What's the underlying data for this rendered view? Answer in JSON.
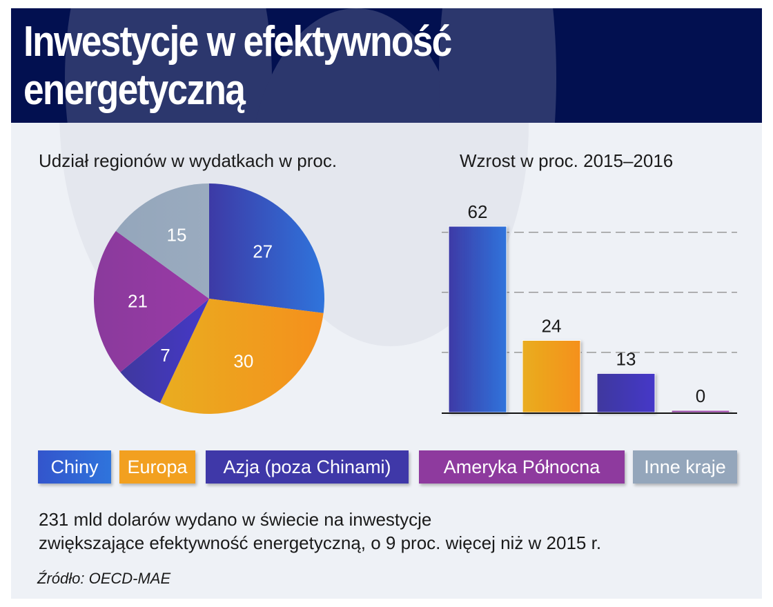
{
  "title": "Inwestycje w efektywność energetyczną",
  "colors": {
    "chiny": "#2f6fdc",
    "europa": "#f2a020",
    "azja": "#3f38a8",
    "ameryka": "#8e3a9e",
    "inne": "#94a6bb",
    "header": "#021050"
  },
  "legend": [
    {
      "label": "Chiny",
      "color": "#3355cc"
    },
    {
      "label": "Europa",
      "color": "#f2a020"
    },
    {
      "label": "Azja (poza Chinami)",
      "color": "#3f38a8"
    },
    {
      "label": "Ameryka Północna",
      "color": "#8e3a9e"
    },
    {
      "label": "Inne kraje",
      "color": "#94a6bb"
    }
  ],
  "chart_data": [
    {
      "type": "pie",
      "title": "Udział regionów w wydatkach w proc.",
      "categories": [
        "Chiny",
        "Europa",
        "Azja (poza Chinami)",
        "Ameryka Północna",
        "Inne kraje"
      ],
      "values": [
        27,
        30,
        7,
        21,
        15
      ],
      "labels": [
        "27",
        "30",
        "7",
        "21",
        "15"
      ]
    },
    {
      "type": "bar",
      "title": "Wzrost w proc. 2015–2016",
      "categories": [
        "Chiny",
        "Europa",
        "Azja (poza Chinami)",
        "Ameryka Północna"
      ],
      "values": [
        62,
        24,
        13,
        0
      ],
      "labels": [
        "62",
        "24",
        "13",
        "0"
      ],
      "ylim": [
        0,
        62
      ],
      "gridlines": [
        20,
        40,
        60
      ],
      "grid": true
    }
  ],
  "note_line1": "231 mld dolarów wydano w świecie na inwestycje",
  "note_line2": "zwiększające efektywność energetyczną, o 9 proc. więcej niż w 2015 r.",
  "source": "Źródło: OECD-MAE"
}
